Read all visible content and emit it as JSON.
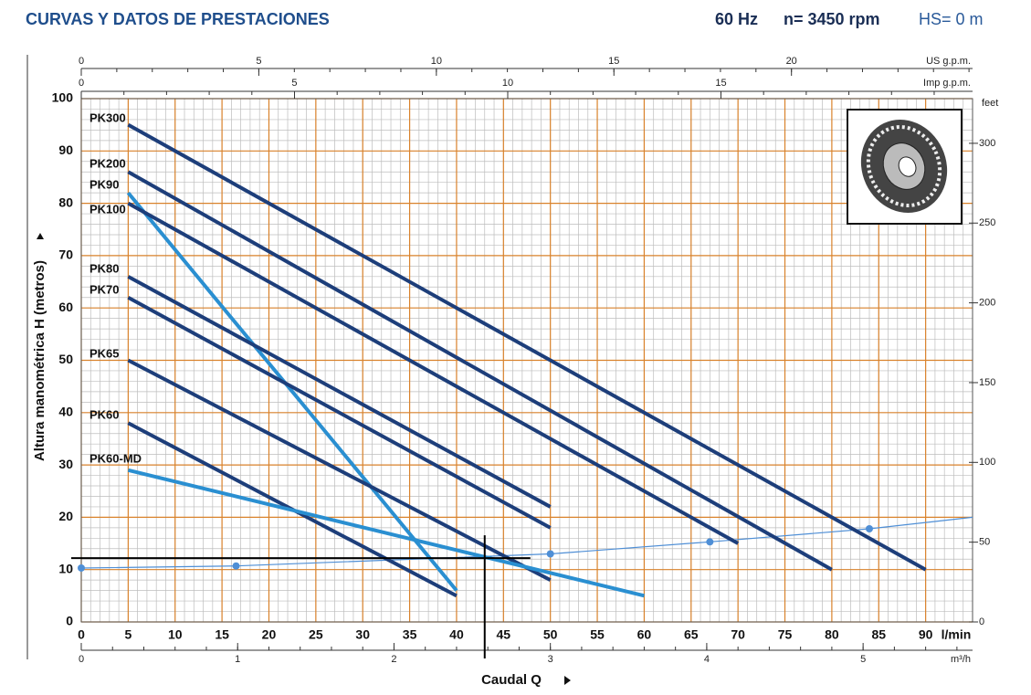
{
  "chart_data": {
    "type": "line",
    "title": "CURVAS Y DATOS DE PRESTACIONES",
    "info": [
      "60 Hz",
      "n= 3450 rpm",
      "HS= 0 m"
    ],
    "xlabel": "Caudal Q",
    "x_unit": "l/min",
    "ylabel": "Altura manométrica H (metros)",
    "xlim": [
      0,
      95
    ],
    "xticks": [
      0,
      5,
      10,
      15,
      20,
      25,
      30,
      35,
      40,
      45,
      50,
      55,
      60,
      65,
      70,
      75,
      80,
      85,
      90
    ],
    "ylim": [
      0,
      100
    ],
    "yticks": [
      0,
      10,
      20,
      30,
      40,
      50,
      60,
      70,
      80,
      90,
      100
    ],
    "y2label": "feet",
    "y2lim": [
      0,
      328
    ],
    "y2ticks": [
      0,
      50,
      100,
      150,
      200,
      250,
      300
    ],
    "x2label": "US g.p.m.",
    "x2lim": [
      0,
      25.1
    ],
    "x2ticks": [
      0,
      5,
      10,
      15,
      20
    ],
    "x3label": "Imp g.p.m.",
    "x3lim": [
      0,
      20.9
    ],
    "x3ticks": [
      0,
      5,
      10,
      15
    ],
    "x4label": "m³/h",
    "x4lim": [
      0,
      5.7
    ],
    "x4ticks": [
      0,
      1,
      2,
      3,
      4,
      5
    ],
    "grid": true,
    "series": [
      {
        "name": "PK300",
        "color": "#1d3e7a",
        "x": [
          5,
          90
        ],
        "values": [
          95,
          10
        ]
      },
      {
        "name": "PK200",
        "color": "#1d3e7a",
        "x": [
          5,
          80
        ],
        "values": [
          86,
          10
        ]
      },
      {
        "name": "PK90",
        "color": "#2a8fd1",
        "x": [
          5,
          40
        ],
        "values": [
          82,
          6
        ]
      },
      {
        "name": "PK100",
        "color": "#1d3e7a",
        "x": [
          5,
          70
        ],
        "values": [
          80,
          15
        ]
      },
      {
        "name": "PK80",
        "color": "#1d3e7a",
        "x": [
          5,
          50
        ],
        "values": [
          66,
          22
        ]
      },
      {
        "name": "PK70",
        "color": "#1d3e7a",
        "x": [
          5,
          50
        ],
        "values": [
          62,
          18
        ]
      },
      {
        "name": "PK65",
        "color": "#1d3e7a",
        "x": [
          5,
          50
        ],
        "values": [
          50,
          8
        ]
      },
      {
        "name": "PK60",
        "color": "#1d3e7a",
        "x": [
          5,
          40
        ],
        "values": [
          38,
          5
        ]
      },
      {
        "name": "PK60-MD",
        "color": "#2a8fd1",
        "x": [
          5,
          60
        ],
        "values": [
          29,
          5
        ]
      }
    ],
    "system_curve": {
      "color": "#4f8fd6",
      "x": [
        0,
        16.5,
        50,
        67,
        84,
        95
      ],
      "values": [
        10.3,
        10.7,
        13,
        15.3,
        17.8,
        20
      ]
    },
    "operating_point": {
      "x": 43,
      "y": 12.2
    }
  }
}
